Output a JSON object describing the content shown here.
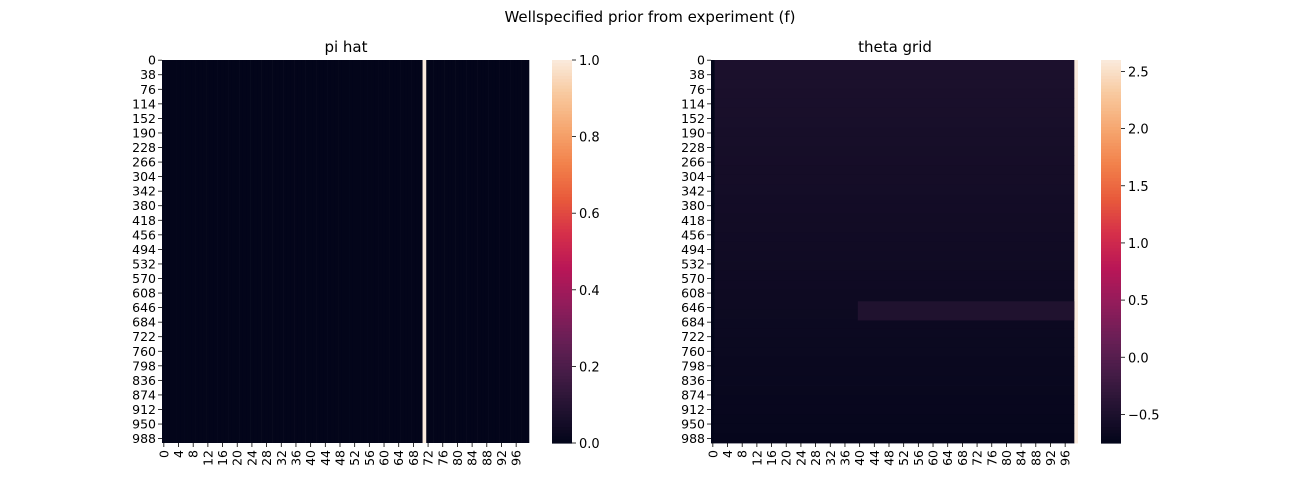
{
  "suptitle": "Wellspecified prior from experiment (f)",
  "chart_data": [
    {
      "type": "heatmap",
      "title": "pi hat",
      "xlabel": "",
      "ylabel": "",
      "n_rows": 1000,
      "n_cols": 100,
      "x_tick_labels": [
        "0",
        "4",
        "8",
        "12",
        "16",
        "20",
        "24",
        "28",
        "32",
        "36",
        "40",
        "44",
        "48",
        "52",
        "56",
        "60",
        "64",
        "68",
        "72",
        "76",
        "80",
        "84",
        "88",
        "92",
        "96"
      ],
      "y_tick_labels": [
        "0",
        "38",
        "76",
        "114",
        "152",
        "190",
        "228",
        "266",
        "304",
        "342",
        "380",
        "418",
        "456",
        "494",
        "532",
        "570",
        "608",
        "646",
        "684",
        "722",
        "760",
        "798",
        "836",
        "874",
        "912",
        "950",
        "988"
      ],
      "colorbar": {
        "min": 0.0,
        "max": 1.0,
        "ticks": [
          "0.0",
          "0.2",
          "0.4",
          "0.6",
          "0.8",
          "1.0"
        ],
        "tick_values": [
          0.0,
          0.2,
          0.4,
          0.6,
          0.8,
          1.0
        ],
        "colormap": "rocket"
      },
      "cells": {
        "default_value": 0.0,
        "columns": [
          {
            "col": 71,
            "value": 1.0
          }
        ]
      }
    },
    {
      "type": "heatmap",
      "title": "theta grid",
      "xlabel": "",
      "ylabel": "",
      "n_rows": 1000,
      "n_cols": 100,
      "x_tick_labels": [
        "0",
        "4",
        "8",
        "12",
        "16",
        "20",
        "24",
        "28",
        "32",
        "36",
        "40",
        "44",
        "48",
        "52",
        "56",
        "60",
        "64",
        "68",
        "72",
        "76",
        "80",
        "84",
        "88",
        "92",
        "96"
      ],
      "y_tick_labels": [
        "0",
        "38",
        "76",
        "114",
        "152",
        "190",
        "228",
        "266",
        "304",
        "342",
        "380",
        "418",
        "456",
        "494",
        "532",
        "570",
        "608",
        "646",
        "684",
        "722",
        "760",
        "798",
        "836",
        "874",
        "912",
        "950",
        "988"
      ],
      "colorbar": {
        "min": -0.75,
        "max": 2.6,
        "ticks": [
          "−0.5",
          "0.0",
          "0.5",
          "1.0",
          "1.5",
          "2.0",
          "2.5"
        ],
        "tick_values": [
          -0.5,
          0.0,
          0.5,
          1.0,
          1.5,
          2.0,
          2.5
        ],
        "colormap": "rocket"
      },
      "cells": {
        "description_values": {
          "first_column": -0.75,
          "last_column": 2.6,
          "interior_top": -0.5,
          "interior_bottom": -0.72,
          "band_rows": [
            630,
            680
          ],
          "band_start_col": 40,
          "band_value": -0.45
        }
      }
    }
  ],
  "colors": {
    "cmap_stops": [
      "#03051a",
      "#221331",
      "#451c47",
      "#6a1f56",
      "#921c5b",
      "#b91657",
      "#d52f4a",
      "#e85a3b",
      "#f2814b",
      "#f6a66f",
      "#f8c89d",
      "#faebdd"
    ]
  }
}
